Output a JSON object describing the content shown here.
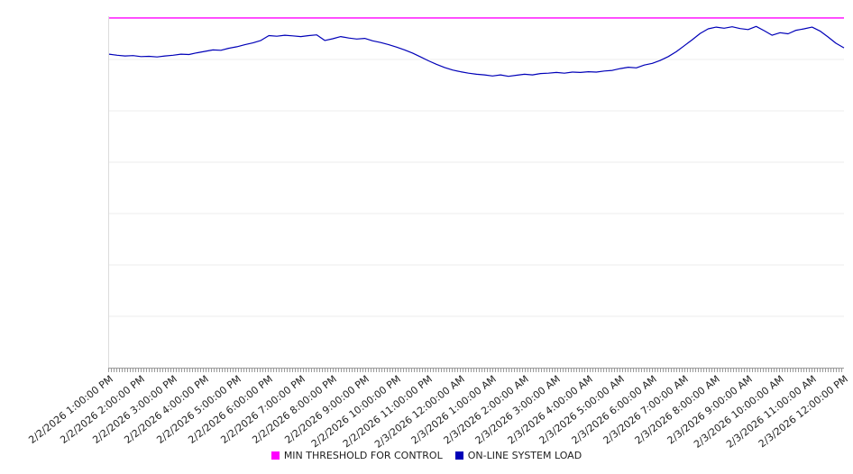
{
  "chart_data": {
    "type": "line",
    "title": "",
    "xlabel": "",
    "ylabel": "",
    "ylim": [
      0,
      100
    ],
    "grid": "horizontal",
    "legend_position": "bottom",
    "categories": [
      "2/2/2026 1:00:00 PM",
      "2/2/2026 2:00:00 PM",
      "2/2/2026 3:00:00 PM",
      "2/2/2026 4:00:00 PM",
      "2/2/2026 5:00:00 PM",
      "2/2/2026 6:00:00 PM",
      "2/2/2026 7:00:00 PM",
      "2/2/2026 8:00:00 PM",
      "2/2/2026 9:00:00 PM",
      "2/2/2026 10:00:00 PM",
      "2/2/2026 11:00:00 PM",
      "2/3/2026 12:00:00 AM",
      "2/3/2026 1:00:00 AM",
      "2/3/2026 2:00:00 AM",
      "2/3/2026 3:00:00 AM",
      "2/3/2026 4:00:00 AM",
      "2/3/2026 5:00:00 AM",
      "2/3/2026 6:00:00 AM",
      "2/3/2026 7:00:00 AM",
      "2/3/2026 8:00:00 AM",
      "2/3/2026 9:00:00 AM",
      "2/3/2026 10:00:00 AM",
      "2/3/2026 11:00:00 AM",
      "2/3/2026 12:00:00 PM"
    ],
    "series": [
      {
        "name": "MIN THRESHOLD FOR CONTROL",
        "color": "#ff00ff",
        "value": 99.5
      },
      {
        "name": "ON-LINE SYSTEM LOAD",
        "color": "#0000b8",
        "values": [
          89.2,
          88.9,
          88.7,
          88.8,
          88.5,
          88.6,
          88.4,
          88.7,
          88.9,
          89.2,
          89.1,
          89.6,
          90.0,
          90.4,
          90.3,
          90.9,
          91.3,
          91.9,
          92.4,
          93.1,
          94.5,
          94.3,
          94.6,
          94.4,
          94.2,
          94.5,
          94.7,
          93.1,
          93.6,
          94.2,
          93.8,
          93.5,
          93.7,
          93.0,
          92.5,
          91.9,
          91.2,
          90.4,
          89.5,
          88.4,
          87.3,
          86.3,
          85.4,
          84.7,
          84.2,
          83.8,
          83.5,
          83.3,
          83.0,
          83.3,
          82.9,
          83.2,
          83.5,
          83.3,
          83.7,
          83.8,
          84.0,
          83.8,
          84.1,
          84.0,
          84.2,
          84.1,
          84.4,
          84.6,
          85.1,
          85.5,
          85.3,
          86.1,
          86.6,
          87.4,
          88.5,
          89.9,
          91.6,
          93.3,
          95.1,
          96.4,
          96.9,
          96.6,
          97.0,
          96.5,
          96.2,
          97.1,
          95.9,
          94.6,
          95.3,
          95.0,
          96.0,
          96.4,
          96.9,
          95.8,
          94.1,
          92.3,
          91.0
        ]
      }
    ]
  }
}
